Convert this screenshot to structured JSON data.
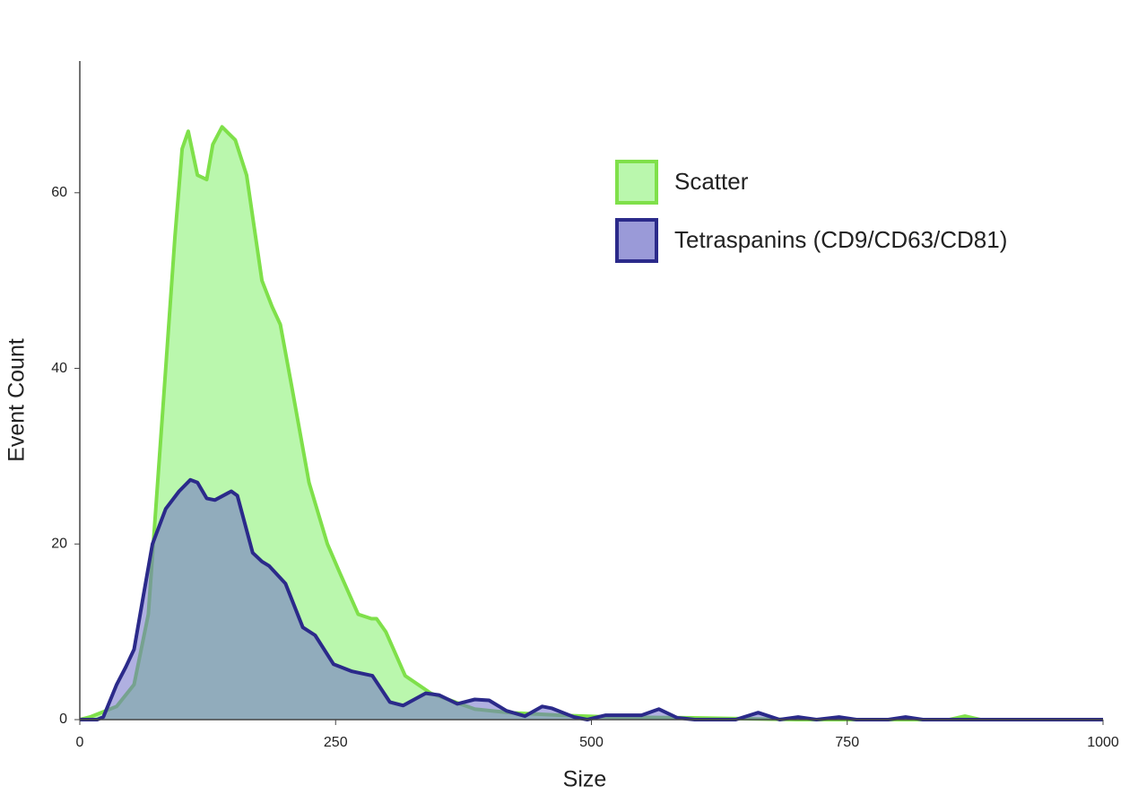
{
  "chart_data": {
    "type": "area",
    "xlabel": "Size",
    "ylabel": "Event Count",
    "xlim": [
      0,
      1000
    ],
    "xticks": [
      0,
      250,
      500,
      750,
      1000
    ],
    "ylim": [
      0,
      75
    ],
    "yticks": [
      0,
      20,
      40,
      60
    ],
    "legend": "upper right",
    "series": [
      {
        "name": "Scatter",
        "color": "#7fe04a",
        "fill": "#b6f7a9",
        "x": [
          0,
          10,
          36,
          53,
          67,
          84,
          93,
          100,
          106,
          115,
          124,
          130,
          139,
          152,
          163,
          178,
          188,
          196,
          207,
          224,
          242,
          253,
          272,
          285,
          290,
          299,
          318,
          343,
          386,
          420,
          470,
          520,
          600,
          700,
          850,
          865,
          880,
          1000
        ],
        "values": [
          0,
          0.3,
          1.5,
          4,
          12,
          40,
          55,
          65,
          67,
          62,
          61.5,
          65.5,
          67.5,
          66,
          62,
          50,
          47,
          45,
          38,
          27,
          20,
          17,
          12,
          11.5,
          11.5,
          10,
          5,
          3,
          1.2,
          0.8,
          0.5,
          0.3,
          0.2,
          0,
          0,
          0.4,
          0,
          0
        ]
      },
      {
        "name": "Tetraspanins (CD9/CD63/CD81)",
        "color": "#2b2a8a",
        "fill": "#6f6fc8",
        "x": [
          0,
          17,
          23,
          36,
          45,
          53,
          62,
          71,
          84,
          97,
          108,
          115,
          124,
          132,
          148,
          154,
          169,
          178,
          185,
          201,
          218,
          230,
          248,
          266,
          286,
          303,
          316,
          338,
          351,
          369,
          386,
          400,
          417,
          435,
          452,
          461,
          483,
          496,
          514,
          531,
          549,
          566,
          584,
          601,
          641,
          663,
          684,
          702,
          720,
          742,
          759,
          790,
          807,
          824,
          1000
        ],
        "values": [
          0,
          0,
          0.3,
          4,
          6,
          8,
          14,
          20,
          24,
          26,
          27.3,
          27,
          25.2,
          25,
          26,
          25.5,
          19,
          18,
          17.5,
          15.5,
          10.5,
          9.6,
          6.3,
          5.5,
          5,
          2,
          1.6,
          3,
          2.8,
          1.8,
          2.3,
          2.2,
          1,
          0.4,
          1.5,
          1.3,
          0.3,
          0,
          0.5,
          0.5,
          0.5,
          1.2,
          0.2,
          0,
          0,
          0.8,
          0,
          0.3,
          0,
          0.3,
          0,
          0,
          0.3,
          0,
          0
        ]
      }
    ]
  }
}
